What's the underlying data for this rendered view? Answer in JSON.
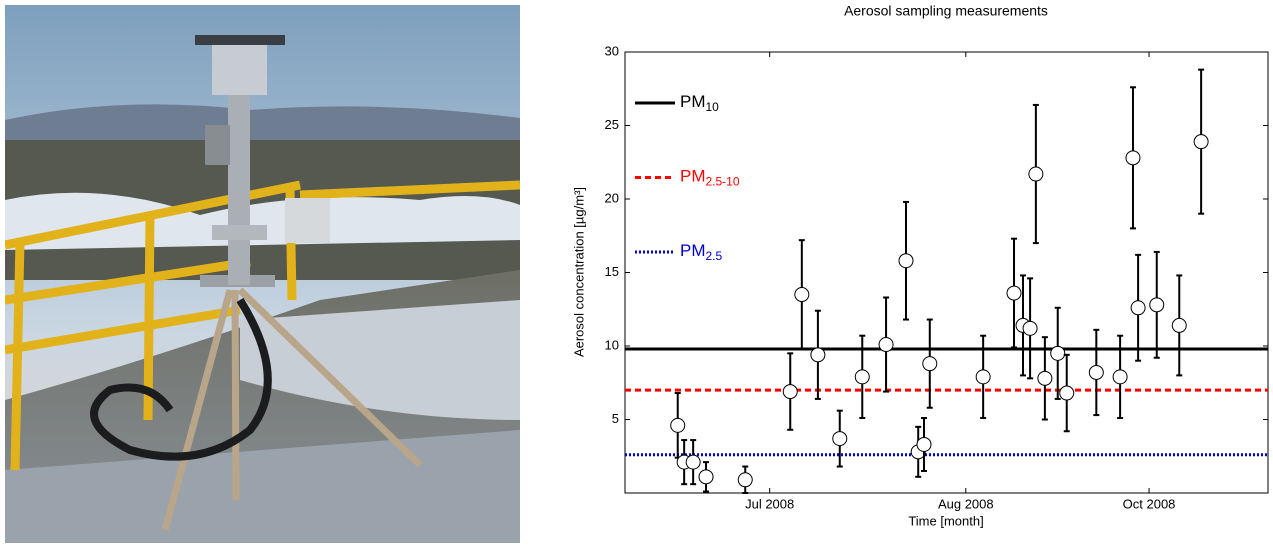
{
  "chart_data": {
    "type": "scatter",
    "title": "Aerosol sampling measurements",
    "xlabel": "Time [month]",
    "ylabel": "Aerosol concentration [µg/m³]",
    "xlim": [
      0,
      100
    ],
    "xticks": [
      {
        "value": 22.5,
        "label": "Jul 2008"
      },
      {
        "value": 53,
        "label": "Aug 2008"
      },
      {
        "value": 81.5,
        "label": "Oct 2008"
      }
    ],
    "ylim": [
      0,
      30
    ],
    "yticks": [
      5,
      10,
      15,
      20,
      25,
      30
    ],
    "legend": "upper left",
    "points": {
      "color": "#000000",
      "x": [
        8.2,
        9.2,
        10.6,
        12.6,
        18.7,
        25.7,
        27.5,
        30.0,
        33.4,
        36.9,
        40.6,
        43.7,
        45.6,
        46.5,
        47.4,
        55.7,
        60.5,
        61.9,
        63.0,
        63.9,
        65.3,
        67.3,
        68.7,
        73.3,
        77.0,
        79.0,
        79.8,
        82.7,
        86.2,
        89.6
      ],
      "values": [
        4.6,
        2.1,
        2.1,
        1.1,
        0.9,
        6.9,
        13.5,
        9.4,
        3.7,
        7.9,
        10.1,
        15.8,
        2.8,
        3.3,
        8.8,
        7.9,
        13.6,
        11.4,
        11.2,
        21.7,
        7.8,
        9.5,
        6.8,
        8.2,
        7.9,
        22.8,
        12.6,
        12.8,
        11.4,
        23.9
      ],
      "errors": [
        2.2,
        1.5,
        1.5,
        1.0,
        0.9,
        2.6,
        3.7,
        3.0,
        1.9,
        2.8,
        3.2,
        4.0,
        1.7,
        1.8,
        3.0,
        2.8,
        3.7,
        3.4,
        3.4,
        4.7,
        2.8,
        3.1,
        2.6,
        2.9,
        2.8,
        4.8,
        3.6,
        3.6,
        3.4,
        4.9
      ]
    },
    "series": [
      {
        "name": "PM",
        "subscript": "10",
        "color": "#000000",
        "style": "solid",
        "value": 9.8
      },
      {
        "name": "PM",
        "subscript": "2.5-10",
        "color": "#ff0000",
        "style": "dashed",
        "value": 7.0
      },
      {
        "name": "PM",
        "subscript": "2.5",
        "color": "#0000cc",
        "style": "dotted",
        "value": 2.6
      }
    ]
  }
}
